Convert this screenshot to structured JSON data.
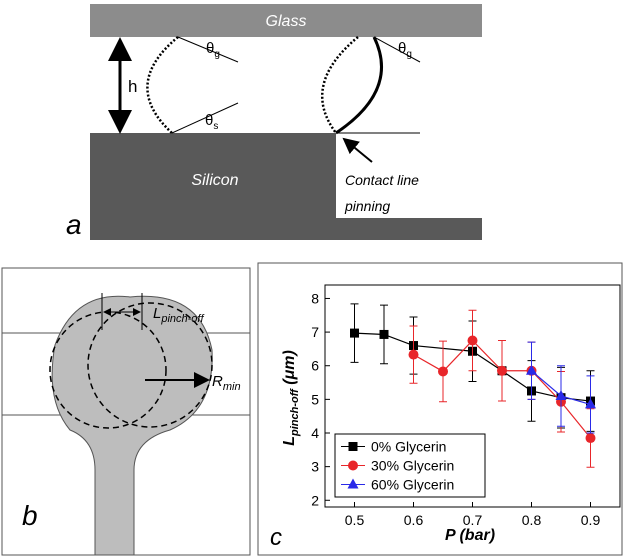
{
  "panel_a": {
    "top_layer": "Glass",
    "bottom_layer": "Silicon",
    "gap": "h",
    "angle_glass_left": {
      "symbol": "θ",
      "sub": "g"
    },
    "angle_silicon": {
      "symbol": "θ",
      "sub": "s"
    },
    "angle_glass_right": {
      "symbol": "θ",
      "sub": "g"
    },
    "annotation": [
      "Contact line",
      "pinning"
    ],
    "panel_label": "a"
  },
  "panel_b": {
    "length_label": {
      "main": "L",
      "sub": "pinch-off"
    },
    "radius_label": {
      "main": "R",
      "sub": "min"
    },
    "panel_label": "b"
  },
  "chart_data": {
    "type": "errorbar-line",
    "panel_label": "c",
    "xlabel": "P (bar)",
    "ylabel": {
      "main": "L",
      "sub": "pinch-off",
      "unit": " (μm)"
    },
    "xlim": [
      0.45,
      0.95
    ],
    "ylim": [
      1.8,
      8.4
    ],
    "xticks": [
      0.5,
      0.6,
      0.7,
      0.8,
      0.9
    ],
    "yticks": [
      2,
      3,
      4,
      5,
      6,
      7,
      8
    ],
    "legend": "lower left",
    "series": [
      {
        "name": "0% Glycerin",
        "color": "#000000",
        "marker": "square",
        "x": [
          0.5,
          0.55,
          0.6,
          0.7,
          0.75,
          0.8,
          0.85,
          0.9
        ],
        "values": [
          6.97,
          6.93,
          6.6,
          6.43,
          5.85,
          5.25,
          5.05,
          4.95
        ],
        "errors": [
          0.87,
          0.87,
          0.85,
          0.9,
          0.9,
          0.9,
          0.9,
          0.9
        ]
      },
      {
        "name": "30% Glycerin",
        "color": "#e8262a",
        "marker": "circle",
        "x": [
          0.6,
          0.65,
          0.7,
          0.75,
          0.8,
          0.85,
          0.9
        ],
        "values": [
          6.33,
          5.83,
          6.75,
          5.85,
          5.85,
          4.93,
          3.85
        ],
        "errors": [
          0.85,
          0.9,
          0.9,
          0.9,
          0.85,
          0.9,
          0.87
        ]
      },
      {
        "name": "60% Glycerin",
        "color": "#2a2ae8",
        "marker": "triangle",
        "x": [
          0.8,
          0.85,
          0.9
        ],
        "values": [
          5.85,
          5.1,
          4.85
        ],
        "errors": [
          0.85,
          0.9,
          0.85
        ]
      }
    ]
  }
}
